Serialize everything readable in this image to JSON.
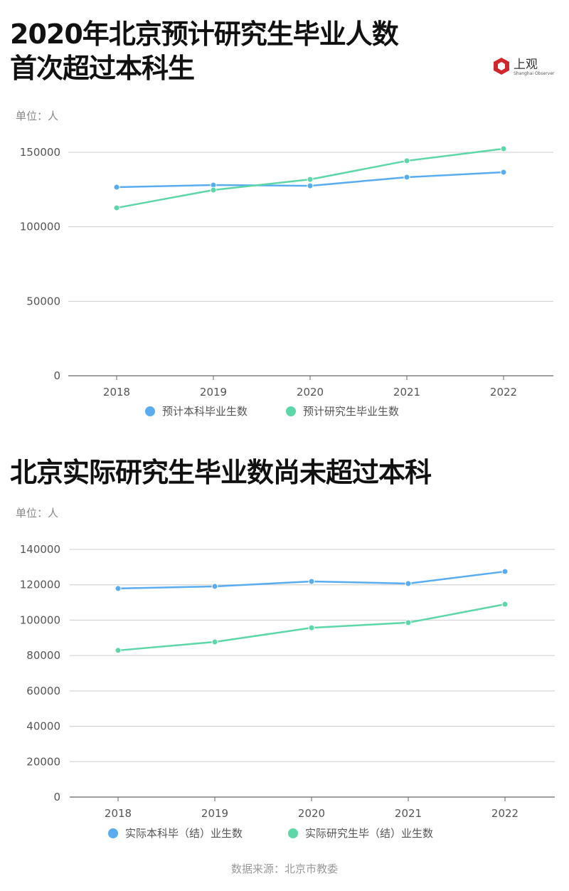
{
  "header": {
    "title_line1": "2020年北京预计研究生毕业人数",
    "title_line2": "首次超过本科生"
  },
  "logo": {
    "text": "上观",
    "subtitle": "Shanghai Observer",
    "color": "#d0262c"
  },
  "section2": {
    "title": "北京实际研究生毕业数尚未超过本科"
  },
  "source": "数据来源：北京市教委",
  "chart_data": [
    {
      "type": "line",
      "unit_label": "单位：人",
      "categories": [
        "2018",
        "2019",
        "2020",
        "2021",
        "2022"
      ],
      "ylim": [
        0,
        150000
      ],
      "yticks": [
        0,
        50000,
        100000,
        150000
      ],
      "grid": true,
      "legend": "bottom",
      "series": [
        {
          "name": "预计本科毕业生数",
          "color": "#5aacf0",
          "values": [
            126600,
            128000,
            127500,
            133300,
            136600
          ]
        },
        {
          "name": "预计研究生毕业生数",
          "color": "#5dd6a8",
          "values": [
            112700,
            124700,
            131800,
            144300,
            152400
          ]
        }
      ]
    },
    {
      "type": "line",
      "unit_label": "单位：人",
      "categories": [
        "2018",
        "2019",
        "2020",
        "2021",
        "2022"
      ],
      "ylim": [
        0,
        140000
      ],
      "yticks": [
        0,
        20000,
        40000,
        60000,
        80000,
        100000,
        120000,
        140000
      ],
      "grid": true,
      "legend": "bottom",
      "series": [
        {
          "name": "实际本科毕（结）业生数",
          "color": "#5aacf0",
          "values": [
            117900,
            119100,
            121900,
            120700,
            127500
          ]
        },
        {
          "name": "实际研究生毕（结）业生数",
          "color": "#5dd6a8",
          "values": [
            82900,
            87700,
            95700,
            98600,
            109000
          ]
        }
      ]
    }
  ]
}
